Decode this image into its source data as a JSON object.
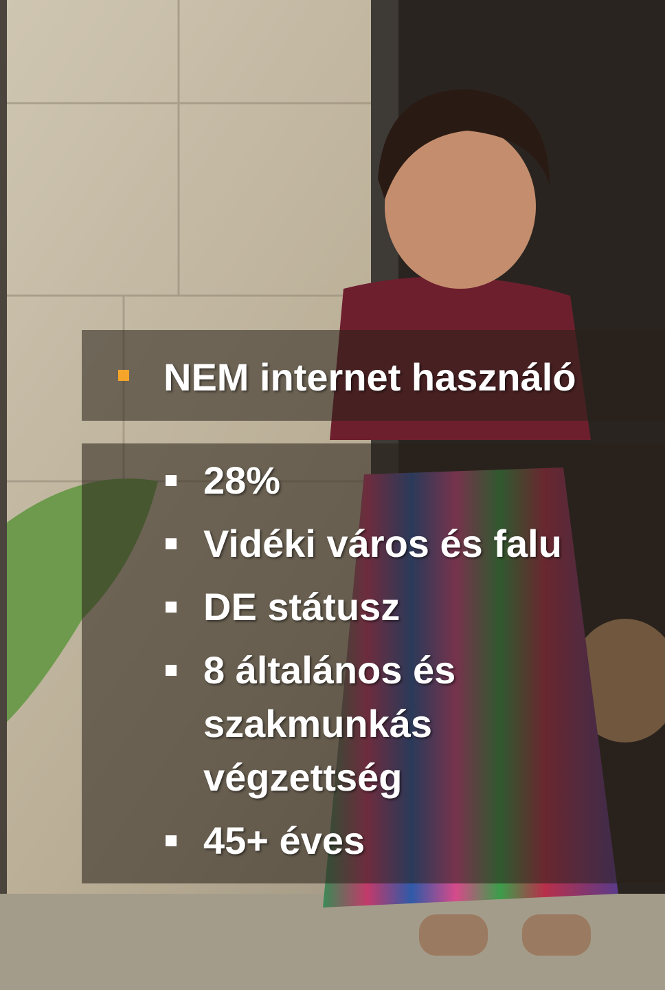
{
  "title": "NEM internet használó",
  "bullets": [
    "28%",
    "Vidéki város és falu",
    "DE státusz",
    "8 általános és szakmunkás végzettség",
    "45+ éves"
  ]
}
